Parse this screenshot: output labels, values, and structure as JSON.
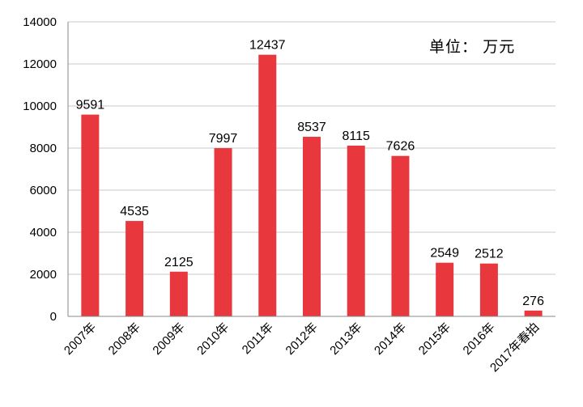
{
  "chart_data": {
    "type": "bar",
    "categories": [
      "2007年",
      "2008年",
      "2009年",
      "2010年",
      "2011年",
      "2012年",
      "2013年",
      "2014年",
      "2015年",
      "2016年",
      "2017年春拍"
    ],
    "values": [
      9591,
      4535,
      2125,
      7997,
      12437,
      8537,
      8115,
      7626,
      2549,
      2512,
      276
    ],
    "unit_label": "单位： 万元",
    "ylim": [
      0,
      14000
    ],
    "yticks": [
      0,
      2000,
      4000,
      6000,
      8000,
      10000,
      12000,
      14000
    ],
    "grid": true,
    "bar_color": "#e8383d",
    "grid_color": "#c8c8c8"
  }
}
